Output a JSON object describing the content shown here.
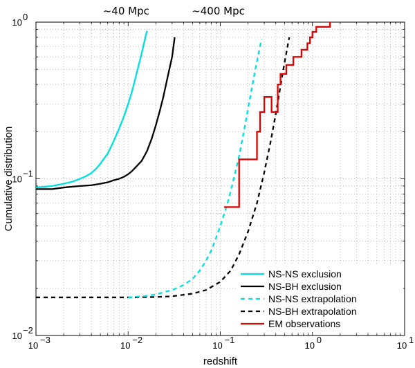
{
  "chart_data": {
    "type": "line",
    "xscale": "log",
    "yscale": "log",
    "xlim": [
      0.001,
      10
    ],
    "ylim": [
      0.01,
      1
    ],
    "xlabel": "redshift",
    "ylabel": "Cumulative distribution",
    "grid": true,
    "legend_position": "bottom-right",
    "x_ticks": [
      {
        "value": 0.001,
        "base": "10",
        "exp": "−3"
      },
      {
        "value": 0.01,
        "base": "10",
        "exp": "−2"
      },
      {
        "value": 0.1,
        "base": "10",
        "exp": "−1"
      },
      {
        "value": 1,
        "base": "10",
        "exp": "0"
      },
      {
        "value": 10,
        "base": "10",
        "exp": "1"
      }
    ],
    "y_ticks": [
      {
        "value": 0.01,
        "base": "10",
        "exp": "−2"
      },
      {
        "value": 0.1,
        "base": "10",
        "exp": "−1"
      },
      {
        "value": 1,
        "base": "10",
        "exp": "0"
      }
    ],
    "annotations": [
      {
        "text": "~40 Mpc",
        "x": 0.0095
      },
      {
        "text": "~400 Mpc",
        "x": 0.095
      }
    ],
    "series": [
      {
        "name": "NS-NS exclusion",
        "color": "#00e0e0",
        "style": "solid",
        "x": [
          0.001,
          0.0015,
          0.002,
          0.0025,
          0.003,
          0.0035,
          0.004,
          0.0045,
          0.005,
          0.006,
          0.007,
          0.008,
          0.009,
          0.01,
          0.011,
          0.012,
          0.013,
          0.014,
          0.015,
          0.016
        ],
        "y": [
          0.088,
          0.09,
          0.093,
          0.096,
          0.1,
          0.104,
          0.109,
          0.116,
          0.125,
          0.145,
          0.175,
          0.21,
          0.25,
          0.3,
          0.36,
          0.44,
          0.53,
          0.63,
          0.75,
          0.88
        ]
      },
      {
        "name": "NS-BH exclusion",
        "color": "#000000",
        "style": "solid",
        "x": [
          0.001,
          0.0015,
          0.002,
          0.003,
          0.004,
          0.005,
          0.006,
          0.007,
          0.008,
          0.009,
          0.01,
          0.011,
          0.012,
          0.014,
          0.016,
          0.018,
          0.02,
          0.022,
          0.024,
          0.026,
          0.028,
          0.03,
          0.032
        ],
        "y": [
          0.086,
          0.086,
          0.088,
          0.09,
          0.091,
          0.093,
          0.095,
          0.098,
          0.1,
          0.103,
          0.107,
          0.112,
          0.118,
          0.13,
          0.15,
          0.18,
          0.22,
          0.27,
          0.33,
          0.41,
          0.5,
          0.6,
          0.8
        ]
      },
      {
        "name": "NS-NS extrapolation",
        "color": "#00e0e0",
        "style": "dashed",
        "x": [
          0.01,
          0.015,
          0.02,
          0.03,
          0.04,
          0.05,
          0.06,
          0.07,
          0.08,
          0.09,
          0.1,
          0.12,
          0.14,
          0.16,
          0.18,
          0.2,
          0.22,
          0.24,
          0.26,
          0.28
        ],
        "y": [
          0.0175,
          0.0178,
          0.0183,
          0.0195,
          0.021,
          0.023,
          0.026,
          0.03,
          0.035,
          0.042,
          0.05,
          0.07,
          0.1,
          0.14,
          0.2,
          0.28,
          0.38,
          0.5,
          0.63,
          0.78
        ]
      },
      {
        "name": "NS-BH extrapolation",
        "color": "#000000",
        "style": "dashed",
        "x": [
          0.001,
          0.002,
          0.005,
          0.01,
          0.02,
          0.03,
          0.05,
          0.07,
          0.1,
          0.13,
          0.16,
          0.2,
          0.25,
          0.3,
          0.35,
          0.4,
          0.45,
          0.5,
          0.56
        ],
        "y": [
          0.0175,
          0.0175,
          0.0175,
          0.0175,
          0.0176,
          0.0178,
          0.0185,
          0.0195,
          0.022,
          0.026,
          0.033,
          0.046,
          0.07,
          0.11,
          0.17,
          0.26,
          0.39,
          0.56,
          0.8
        ]
      },
      {
        "name": "EM observations",
        "color": "#e00000",
        "style": "step",
        "x": [
          0.11,
          0.16,
          0.16,
          0.25,
          0.25,
          0.27,
          0.27,
          0.3,
          0.3,
          0.36,
          0.36,
          0.42,
          0.42,
          0.45,
          0.45,
          0.52,
          0.52,
          0.62,
          0.62,
          0.76,
          0.76,
          0.88,
          0.88,
          0.94,
          0.94,
          1.0,
          1.0,
          1.1,
          1.1,
          1.55,
          1.55
        ],
        "y": [
          0.066,
          0.066,
          0.133,
          0.133,
          0.2,
          0.2,
          0.267,
          0.267,
          0.333,
          0.333,
          0.267,
          0.267,
          0.4,
          0.4,
          0.467,
          0.467,
          0.533,
          0.533,
          0.6,
          0.6,
          0.667,
          0.667,
          0.733,
          0.733,
          0.8,
          0.8,
          0.867,
          0.867,
          0.933,
          0.933,
          1.0
        ]
      }
    ]
  }
}
